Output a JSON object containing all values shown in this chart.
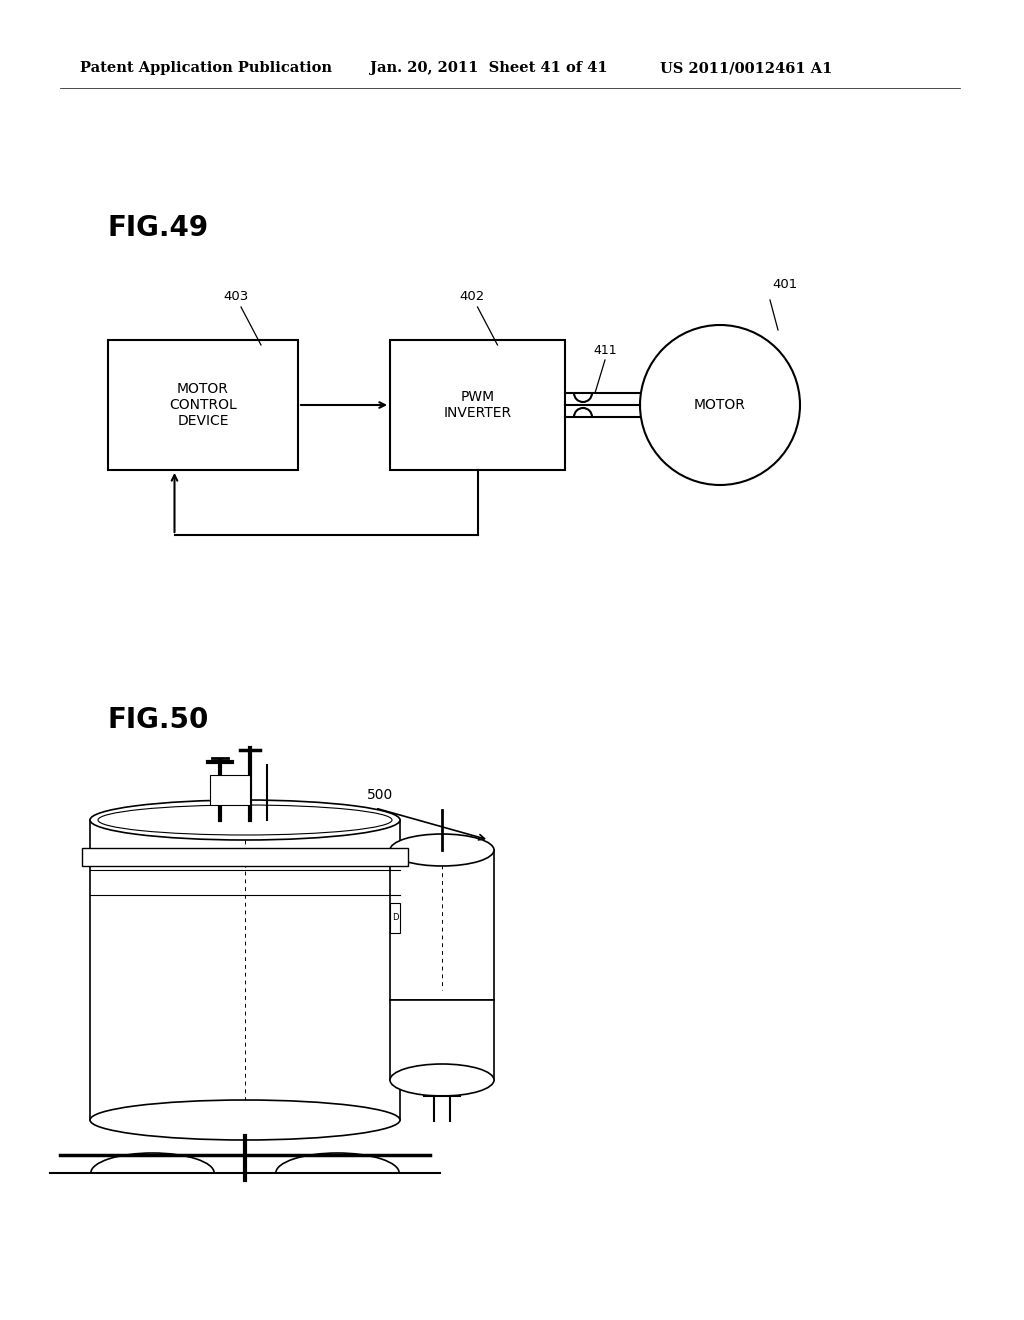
{
  "bg_color": "#ffffff",
  "header_text": "Patent Application Publication",
  "header_date": "Jan. 20, 2011  Sheet 41 of 41",
  "header_patent": "US 2011/0012461 A1",
  "fig49_label": "FIG.49",
  "fig50_label": "FIG.50"
}
